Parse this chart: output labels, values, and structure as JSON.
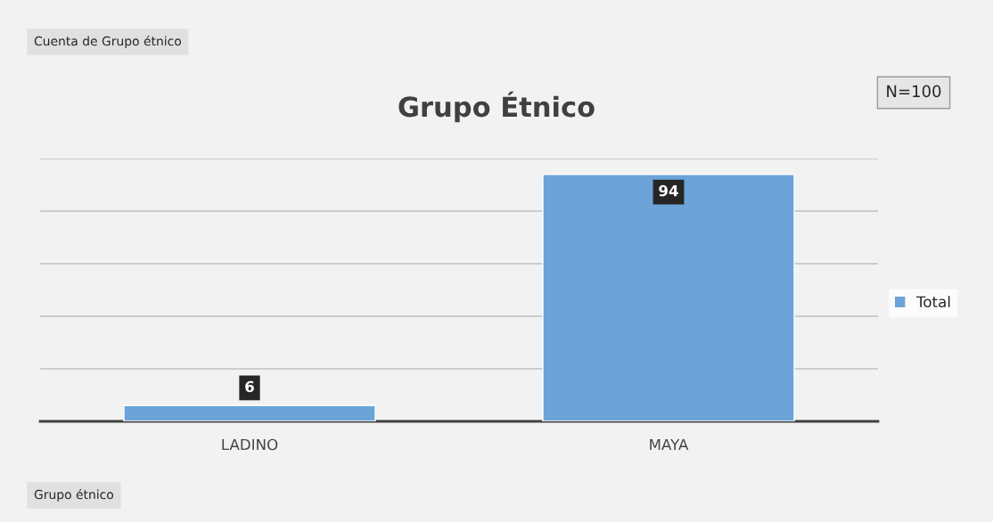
{
  "chart_data": {
    "type": "bar",
    "title": "Grupo Étnico",
    "categories": [
      "LADINO",
      "MAYA"
    ],
    "series": [
      {
        "name": "Total",
        "color": "#6ca4d9",
        "values": [
          6,
          94
        ]
      }
    ],
    "ylim": [
      0,
      100
    ],
    "yticks": [
      {
        "value": 0,
        "label": null
      },
      {
        "value": 20,
        "label": null
      },
      {
        "value": 40,
        "label": null
      },
      {
        "value": 60,
        "label": null
      },
      {
        "value": 80,
        "label": null
      },
      {
        "value": 100,
        "label": null
      }
    ],
    "tick_labels": "x",
    "grid": "y",
    "legend": "right",
    "data_labels": true,
    "annotations": [
      "Cuenta de Grupo étnico",
      "N=100",
      "Grupo étnico"
    ]
  }
}
